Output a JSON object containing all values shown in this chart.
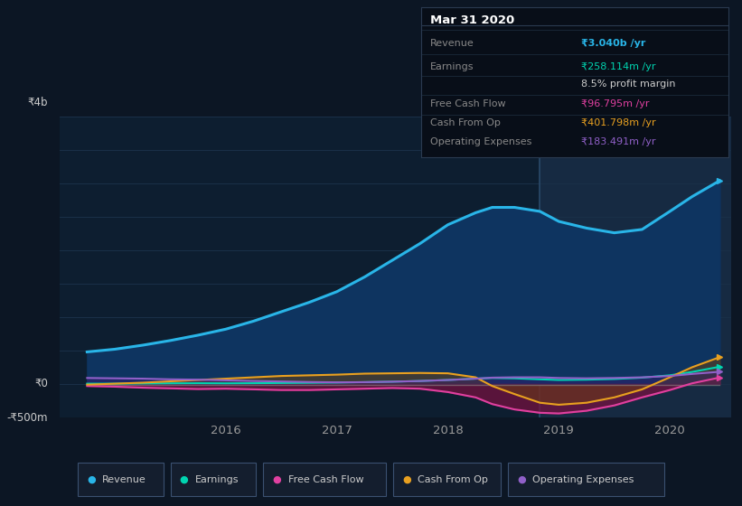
{
  "bg_color": "#0c1624",
  "plot_bg_color": "#0d1e30",
  "grid_color": "#1a3048",
  "ylim": [
    -500,
    4000
  ],
  "xlim": [
    2014.5,
    2020.55
  ],
  "xticks": [
    2016,
    2017,
    2018,
    2019,
    2020
  ],
  "highlight_x_start": 2018.83,
  "highlight_x_end": 2020.55,
  "highlight_color": "#162a42",
  "revenue_color": "#29b5e8",
  "revenue_fill_color": "#0e3460",
  "earnings_color": "#00d4b0",
  "fcf_color": "#e040a0",
  "cashfromop_color": "#e8a020",
  "opex_color": "#9060c8",
  "series_x": [
    2014.75,
    2015.0,
    2015.25,
    2015.5,
    2015.75,
    2016.0,
    2016.25,
    2016.5,
    2016.75,
    2017.0,
    2017.25,
    2017.5,
    2017.75,
    2018.0,
    2018.25,
    2018.4,
    2018.6,
    2018.83,
    2019.0,
    2019.25,
    2019.5,
    2019.75,
    2020.0,
    2020.2,
    2020.45
  ],
  "revenue_y": [
    480,
    520,
    580,
    650,
    730,
    820,
    940,
    1080,
    1220,
    1380,
    1600,
    1850,
    2100,
    2380,
    2560,
    2640,
    2640,
    2580,
    2430,
    2330,
    2260,
    2310,
    2580,
    2800,
    3040
  ],
  "earnings_y": [
    5,
    5,
    8,
    10,
    12,
    10,
    12,
    15,
    18,
    22,
    28,
    35,
    45,
    60,
    80,
    90,
    85,
    70,
    60,
    65,
    75,
    95,
    130,
    180,
    258
  ],
  "fcf_y": [
    -30,
    -40,
    -55,
    -65,
    -75,
    -70,
    -80,
    -90,
    -90,
    -80,
    -70,
    -60,
    -70,
    -120,
    -200,
    -300,
    -380,
    -430,
    -440,
    -400,
    -320,
    -200,
    -90,
    10,
    97
  ],
  "cashfromop_y": [
    -10,
    5,
    20,
    40,
    60,
    80,
    100,
    120,
    130,
    140,
    155,
    160,
    165,
    160,
    100,
    -30,
    -150,
    -280,
    -310,
    -280,
    -200,
    -80,
    100,
    250,
    402
  ],
  "opex_y": [
    90,
    85,
    80,
    70,
    65,
    55,
    45,
    38,
    30,
    25,
    28,
    35,
    45,
    60,
    80,
    95,
    100,
    100,
    90,
    85,
    90,
    100,
    120,
    150,
    183
  ],
  "grey_line_y": [
    -20,
    -20,
    -20,
    -20,
    -20,
    -20,
    -20,
    -20,
    -20,
    -20,
    -20,
    -20,
    -20,
    -20,
    -20,
    -20,
    -20,
    -20,
    -20,
    -20,
    -20,
    -20,
    -20,
    -20,
    -20
  ],
  "legend_items": [
    {
      "label": "Revenue",
      "color": "#29b5e8"
    },
    {
      "label": "Earnings",
      "color": "#00d4b0"
    },
    {
      "label": "Free Cash Flow",
      "color": "#e040a0"
    },
    {
      "label": "Cash From Op",
      "color": "#e8a020"
    },
    {
      "label": "Operating Expenses",
      "color": "#9060c8"
    }
  ],
  "tooltip_title": "Mar 31 2020",
  "tooltip_rows": [
    {
      "label": "Revenue",
      "value": "₹3.040b /yr",
      "value_color": "#29b5e8",
      "bold_value": true
    },
    {
      "label": "Earnings",
      "value": "₹258.114m /yr",
      "value_color": "#00d4b0",
      "bold_value": false
    },
    {
      "label": "",
      "value": "8.5% profit margin",
      "value_color": "#cccccc",
      "bold_value": false
    },
    {
      "label": "Free Cash Flow",
      "value": "₹96.795m /yr",
      "value_color": "#e040a0",
      "bold_value": false
    },
    {
      "label": "Cash From Op",
      "value": "₹401.798m /yr",
      "value_color": "#e8a020",
      "bold_value": false
    },
    {
      "label": "Operating Expenses",
      "value": "₹183.491m /yr",
      "value_color": "#9060c8",
      "bold_value": false
    }
  ],
  "y_label_4b": "₹4b",
  "y_label_0": "₹0",
  "y_label_neg500": "-₹500m"
}
